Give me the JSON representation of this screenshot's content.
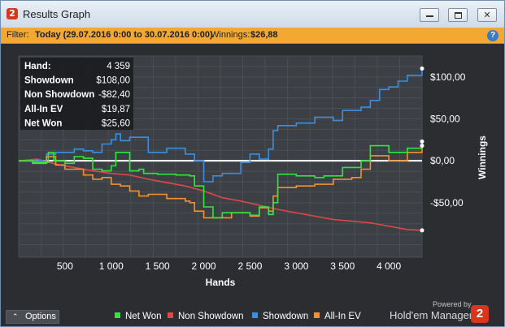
{
  "window": {
    "title": "Results Graph",
    "icon": "hem-logo-icon"
  },
  "filter": {
    "label": "Filter:",
    "range": "Today (29.07.2016 0:00 to 30.07.2016 0:00)",
    "winnings_label": "Winnings:",
    "winnings_value": "$26,88"
  },
  "stats": {
    "rows": [
      {
        "label": "Hand:",
        "value": "4 359"
      },
      {
        "label": "Showdown",
        "value": "$108,00"
      },
      {
        "label": "Non Showdown",
        "value": "-$82,40"
      },
      {
        "label": "All-In EV",
        "value": "$19,87"
      },
      {
        "label": "Net Won",
        "value": "$25,60"
      }
    ]
  },
  "footer": {
    "options_label": "Options",
    "powered_by": "Powered by",
    "brand": "Hold'em Manager"
  },
  "colors": {
    "net_won": "#2ee83a",
    "non_showdown": "#e0474a",
    "showdown": "#3a8fe0",
    "all_in_ev": "#f2922e",
    "filter_bar": "#f3a832",
    "plot_bg": "#3c3f44"
  },
  "chart_data": {
    "type": "line",
    "xlabel": "Hands",
    "ylabel": "Winnings",
    "xlim": [
      0,
      4359
    ],
    "ylim": [
      -115,
      125
    ],
    "x_ticks": [
      500,
      1000,
      1500,
      2000,
      2500,
      3000,
      3500,
      4000
    ],
    "x_tick_labels": [
      "500",
      "1 000",
      "1 500",
      "2 000",
      "2 500",
      "3 000",
      "3 500",
      "4 000"
    ],
    "y_ticks": [
      100,
      50,
      0,
      -50
    ],
    "y_tick_labels": [
      "$100,00",
      "$50,00",
      "$0,00",
      "-$50,00"
    ],
    "grid": true,
    "legend_position": "bottom",
    "series": [
      {
        "name": "Net Won",
        "color": "#2ee83a",
        "x": [
          0,
          150,
          320,
          380,
          500,
          600,
          700,
          800,
          900,
          1000,
          1050,
          1200,
          1300,
          1350,
          1500,
          1700,
          1850,
          1900,
          2000,
          2100,
          2200,
          2300,
          2500,
          2600,
          2700,
          2750,
          2800,
          3000,
          3200,
          3300,
          3500,
          3700,
          3800,
          4000,
          4200,
          4359
        ],
        "y": [
          0,
          -2,
          10,
          0,
          -3,
          5,
          3,
          -10,
          -12,
          -6,
          10,
          -12,
          -10,
          -15,
          -16,
          -17,
          -18,
          -30,
          -55,
          -68,
          -62,
          -62,
          -65,
          -55,
          -64,
          -50,
          -16,
          -18,
          -20,
          -18,
          -8,
          0,
          18,
          10,
          15,
          23
        ]
      },
      {
        "name": "Non Showdown",
        "color": "#e0474a",
        "x": [
          0,
          200,
          400,
          600,
          800,
          1000,
          1200,
          1400,
          1600,
          1800,
          2000,
          2200,
          2400,
          2600,
          2800,
          3000,
          3200,
          3400,
          3600,
          3800,
          4000,
          4200,
          4359
        ],
        "y": [
          0,
          2,
          -4,
          -8,
          -12,
          -15,
          -17,
          -22,
          -26,
          -30,
          -36,
          -44,
          -48,
          -53,
          -58,
          -62,
          -66,
          -70,
          -72,
          -74,
          -78,
          -82,
          -83
        ]
      },
      {
        "name": "Showdown",
        "color": "#3a8fe0",
        "x": [
          0,
          300,
          400,
          600,
          700,
          800,
          900,
          1000,
          1050,
          1100,
          1200,
          1400,
          1600,
          1800,
          1900,
          2000,
          2100,
          2200,
          2400,
          2500,
          2600,
          2700,
          2750,
          2800,
          2900,
          3000,
          3200,
          3400,
          3500,
          3700,
          3800,
          3900,
          4000,
          4100,
          4200,
          4359
        ],
        "y": [
          0,
          8,
          10,
          14,
          12,
          10,
          20,
          25,
          32,
          24,
          28,
          10,
          15,
          8,
          0,
          -25,
          -18,
          -15,
          -2,
          8,
          2,
          14,
          36,
          42,
          42,
          45,
          52,
          48,
          60,
          64,
          72,
          85,
          88,
          95,
          102,
          110
        ]
      },
      {
        "name": "All-In EV",
        "color": "#f2922e",
        "x": [
          0,
          150,
          300,
          400,
          500,
          700,
          800,
          900,
          1000,
          1100,
          1200,
          1300,
          1400,
          1600,
          1800,
          1850,
          1900,
          2000,
          2100,
          2200,
          2300,
          2500,
          2600,
          2700,
          2750,
          2800,
          3000,
          3200,
          3400,
          3600,
          3700,
          3800,
          4000,
          4200,
          4359
        ],
        "y": [
          0,
          -3,
          5,
          -5,
          -10,
          -17,
          -22,
          -20,
          -28,
          -30,
          -36,
          -42,
          -40,
          -45,
          -48,
          -50,
          -60,
          -68,
          -68,
          -68,
          -62,
          -66,
          -56,
          -60,
          -42,
          -32,
          -30,
          -28,
          -22,
          -20,
          -10,
          6,
          0,
          10,
          18
        ]
      }
    ]
  }
}
